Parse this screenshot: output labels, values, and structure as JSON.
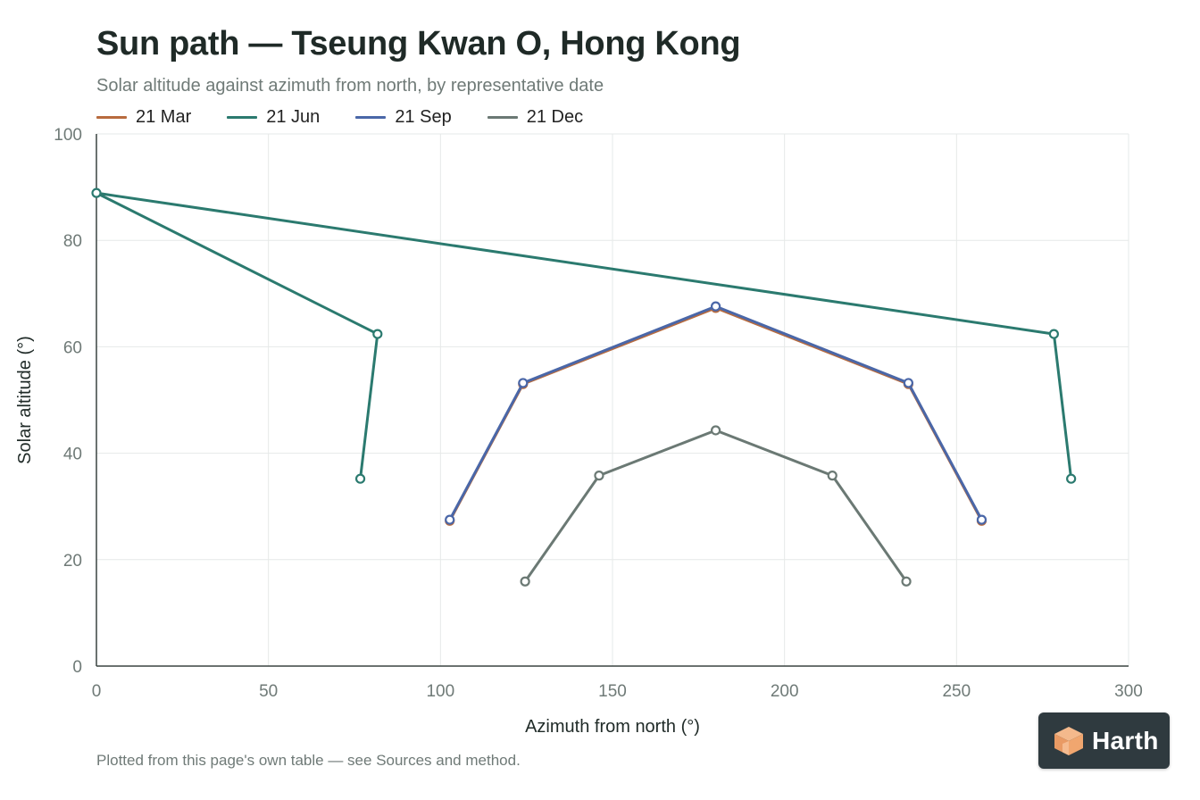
{
  "header": {
    "title": "Sun path — Tseung Kwan O, Hong Kong",
    "subtitle": "Solar altitude against azimuth from north, by representative date"
  },
  "footer": {
    "note": "Plotted from this page's own table — see Sources and method."
  },
  "brand": {
    "name": "Harth",
    "icon": "house-cube-logo"
  },
  "colors": {
    "axis": "#3a4440",
    "grid": "#e6e9e8",
    "tick_text": "#6f7a77",
    "label_text": "#1f2a27"
  },
  "chart_data": {
    "type": "line",
    "title": "Sun path — Tseung Kwan O, Hong Kong",
    "subtitle": "Solar altitude against azimuth from north, by representative date",
    "xlabel": "Azimuth from north (°)",
    "ylabel": "Solar altitude (°)",
    "xlim": [
      0,
      300
    ],
    "ylim": [
      0,
      100
    ],
    "xticks": [
      0,
      50,
      100,
      150,
      200,
      250,
      300
    ],
    "yticks": [
      0,
      20,
      40,
      60,
      80,
      100
    ],
    "grid": true,
    "legend_position": "top-left",
    "series": [
      {
        "name": "21 Mar",
        "color": "#b86b3e",
        "points": [
          [
            102.7,
            27.3
          ],
          [
            124.0,
            53.0
          ],
          [
            180.0,
            67.3
          ],
          [
            236.0,
            53.0
          ],
          [
            257.3,
            27.3
          ]
        ]
      },
      {
        "name": "21 Jun",
        "color": "#2b7a6f",
        "points": [
          [
            76.7,
            35.2
          ],
          [
            81.7,
            62.4
          ],
          [
            0,
            88.9
          ],
          [
            278.3,
            62.4
          ],
          [
            283.3,
            35.2
          ]
        ]
      },
      {
        "name": "21 Sep",
        "color": "#4a67a8",
        "points": [
          [
            102.7,
            27.5
          ],
          [
            124.0,
            53.2
          ],
          [
            180.0,
            67.6
          ],
          [
            236.0,
            53.2
          ],
          [
            257.3,
            27.5
          ]
        ]
      },
      {
        "name": "21 Dec",
        "color": "#6b7974",
        "points": [
          [
            124.6,
            15.9
          ],
          [
            146.1,
            35.8
          ],
          [
            180.0,
            44.3
          ],
          [
            213.9,
            35.8
          ],
          [
            235.4,
            15.9
          ]
        ]
      }
    ]
  }
}
